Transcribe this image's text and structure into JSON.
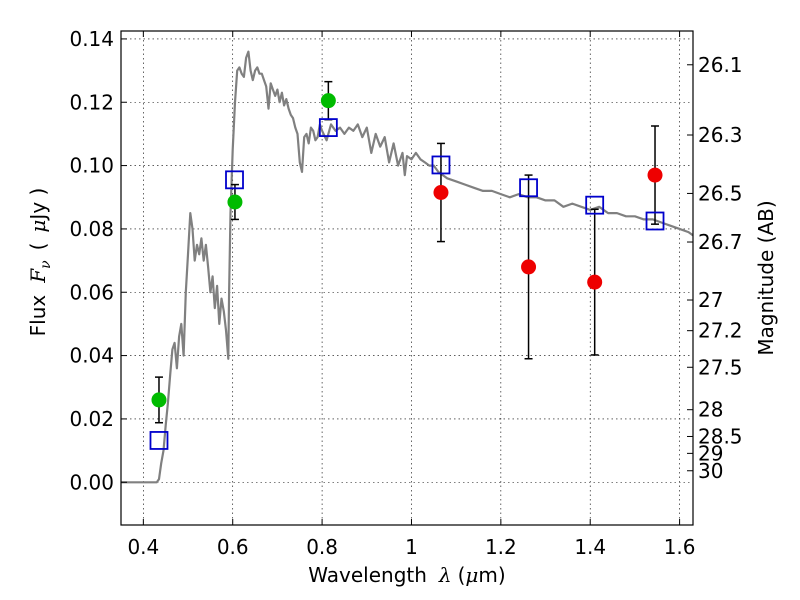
{
  "chart_data": {
    "type": "scatter",
    "xlabel": "Wavelength",
    "xlabel_symbol": "λ",
    "xlabel_unit_pre": "(",
    "xlabel_unit_mu": "μ",
    "xlabel_unit_post": "m)",
    "ylabel": "Flux",
    "ylabel_symbol": "F",
    "ylabel_sub": "ν",
    "ylabel_unit_pre": "(",
    "ylabel_unit_mu": "μ",
    "ylabel_unit_post": "Jy )",
    "y2label": "Magnitude (AB)",
    "xlim": [
      0.35,
      1.63
    ],
    "ylim": [
      -0.0135,
      0.1425
    ],
    "grid": true,
    "x_ticks": [
      {
        "value": 0.4,
        "label": "0.4"
      },
      {
        "value": 0.6,
        "label": "0.6"
      },
      {
        "value": 0.8,
        "label": "0.8"
      },
      {
        "value": 1.0,
        "label": "1"
      },
      {
        "value": 1.2,
        "label": "1.2"
      },
      {
        "value": 1.4,
        "label": "1.4"
      },
      {
        "value": 1.6,
        "label": "1.6"
      }
    ],
    "y_ticks": [
      {
        "value": 0.0,
        "label": "0.00"
      },
      {
        "value": 0.02,
        "label": "0.02"
      },
      {
        "value": 0.04,
        "label": "0.04"
      },
      {
        "value": 0.06,
        "label": "0.06"
      },
      {
        "value": 0.08,
        "label": "0.08"
      },
      {
        "value": 0.1,
        "label": "0.10"
      },
      {
        "value": 0.12,
        "label": "0.12"
      },
      {
        "value": 0.14,
        "label": "0.14"
      }
    ],
    "y2_ticks": [
      {
        "mag": 26.1,
        "label": "26.1"
      },
      {
        "mag": 26.3,
        "label": "26.3"
      },
      {
        "mag": 26.5,
        "label": "26.5"
      },
      {
        "mag": 26.7,
        "label": "26.7"
      },
      {
        "mag": 27,
        "label": "27"
      },
      {
        "mag": 27.2,
        "label": "27.2"
      },
      {
        "mag": 27.5,
        "label": "27.5"
      },
      {
        "mag": 28,
        "label": "28"
      },
      {
        "mag": 28.5,
        "label": "28.5"
      },
      {
        "mag": 29,
        "label": "29"
      },
      {
        "mag": 30,
        "label": "30"
      }
    ],
    "series": [
      {
        "color": "#808080",
        "type": "line",
        "points": [
          [
            0.35,
            0.0
          ],
          [
            0.43,
            0.0
          ],
          [
            0.435,
            0.001
          ],
          [
            0.44,
            0.006
          ],
          [
            0.445,
            0.01
          ],
          [
            0.45,
            0.018
          ],
          [
            0.455,
            0.025
          ],
          [
            0.46,
            0.034
          ],
          [
            0.465,
            0.042
          ],
          [
            0.47,
            0.044
          ],
          [
            0.475,
            0.036
          ],
          [
            0.48,
            0.046
          ],
          [
            0.485,
            0.05
          ],
          [
            0.49,
            0.04
          ],
          [
            0.495,
            0.06
          ],
          [
            0.5,
            0.072
          ],
          [
            0.505,
            0.085
          ],
          [
            0.51,
            0.08
          ],
          [
            0.515,
            0.07
          ],
          [
            0.52,
            0.075
          ],
          [
            0.525,
            0.072
          ],
          [
            0.53,
            0.077
          ],
          [
            0.535,
            0.07
          ],
          [
            0.54,
            0.075
          ],
          [
            0.545,
            0.068
          ],
          [
            0.55,
            0.06
          ],
          [
            0.555,
            0.065
          ],
          [
            0.56,
            0.055
          ],
          [
            0.565,
            0.062
          ],
          [
            0.57,
            0.05
          ],
          [
            0.575,
            0.058
          ],
          [
            0.58,
            0.054
          ],
          [
            0.585,
            0.048
          ],
          [
            0.59,
            0.039
          ],
          [
            0.592,
            0.06
          ],
          [
            0.595,
            0.085
          ],
          [
            0.6,
            0.105
          ],
          [
            0.605,
            0.12
          ],
          [
            0.61,
            0.13
          ],
          [
            0.615,
            0.131
          ],
          [
            0.62,
            0.129
          ],
          [
            0.625,
            0.128
          ],
          [
            0.63,
            0.134
          ],
          [
            0.635,
            0.136
          ],
          [
            0.64,
            0.13
          ],
          [
            0.645,
            0.127
          ],
          [
            0.65,
            0.13
          ],
          [
            0.655,
            0.131
          ],
          [
            0.66,
            0.129
          ],
          [
            0.665,
            0.129
          ],
          [
            0.67,
            0.127
          ],
          [
            0.675,
            0.125
          ],
          [
            0.68,
            0.118
          ],
          [
            0.685,
            0.126
          ],
          [
            0.69,
            0.124
          ],
          [
            0.695,
            0.122
          ],
          [
            0.7,
            0.124
          ],
          [
            0.705,
            0.12
          ],
          [
            0.71,
            0.123
          ],
          [
            0.715,
            0.119
          ],
          [
            0.72,
            0.121
          ],
          [
            0.725,
            0.118
          ],
          [
            0.73,
            0.116
          ],
          [
            0.735,
            0.115
          ],
          [
            0.74,
            0.112
          ],
          [
            0.745,
            0.11
          ],
          [
            0.75,
            0.101
          ],
          [
            0.755,
            0.098
          ],
          [
            0.76,
            0.109
          ],
          [
            0.765,
            0.11
          ],
          [
            0.77,
            0.107
          ],
          [
            0.775,
            0.112
          ],
          [
            0.78,
            0.111
          ],
          [
            0.785,
            0.108
          ],
          [
            0.79,
            0.109
          ],
          [
            0.795,
            0.113
          ],
          [
            0.8,
            0.111
          ],
          [
            0.81,
            0.108
          ],
          [
            0.82,
            0.113
          ],
          [
            0.83,
            0.111
          ],
          [
            0.84,
            0.112
          ],
          [
            0.85,
            0.11
          ],
          [
            0.86,
            0.112
          ],
          [
            0.87,
            0.111
          ],
          [
            0.88,
            0.113
          ],
          [
            0.89,
            0.109
          ],
          [
            0.9,
            0.112
          ],
          [
            0.91,
            0.104
          ],
          [
            0.92,
            0.11
          ],
          [
            0.93,
            0.106
          ],
          [
            0.94,
            0.109
          ],
          [
            0.95,
            0.101
          ],
          [
            0.96,
            0.107
          ],
          [
            0.97,
            0.1
          ],
          [
            0.98,
            0.104
          ],
          [
            0.985,
            0.097
          ],
          [
            0.99,
            0.103
          ],
          [
            1.0,
            0.102
          ],
          [
            1.01,
            0.104
          ],
          [
            1.02,
            0.102
          ],
          [
            1.03,
            0.101
          ],
          [
            1.04,
            0.1
          ],
          [
            1.05,
            0.1
          ],
          [
            1.06,
            0.098
          ],
          [
            1.07,
            0.097
          ],
          [
            1.08,
            0.096
          ],
          [
            1.1,
            0.095
          ],
          [
            1.12,
            0.094
          ],
          [
            1.14,
            0.093
          ],
          [
            1.16,
            0.092
          ],
          [
            1.18,
            0.092
          ],
          [
            1.2,
            0.091
          ],
          [
            1.22,
            0.09
          ],
          [
            1.24,
            0.091
          ],
          [
            1.26,
            0.09
          ],
          [
            1.28,
            0.09
          ],
          [
            1.3,
            0.089
          ],
          [
            1.32,
            0.089
          ],
          [
            1.34,
            0.087
          ],
          [
            1.36,
            0.088
          ],
          [
            1.38,
            0.087
          ],
          [
            1.4,
            0.086
          ],
          [
            1.42,
            0.087
          ],
          [
            1.44,
            0.085
          ],
          [
            1.46,
            0.085
          ],
          [
            1.48,
            0.084
          ],
          [
            1.5,
            0.084
          ],
          [
            1.52,
            0.083
          ],
          [
            1.54,
            0.083
          ],
          [
            1.56,
            0.082
          ],
          [
            1.58,
            0.081
          ],
          [
            1.6,
            0.08
          ],
          [
            1.62,
            0.079
          ],
          [
            1.63,
            0.078
          ]
        ]
      },
      {
        "color": "#00bb00",
        "type": "scatter",
        "points": [
          {
            "x": 0.435,
            "y": 0.026,
            "err": 0.0072
          },
          {
            "x": 0.605,
            "y": 0.0885,
            "err": 0.0055
          },
          {
            "x": 0.814,
            "y": 0.1205,
            "err": 0.006
          }
        ]
      },
      {
        "color": "#ee0000",
        "type": "scatter",
        "points": [
          {
            "x": 1.066,
            "y": 0.0915,
            "err": 0.0155
          },
          {
            "x": 1.262,
            "y": 0.068,
            "err": 0.029
          },
          {
            "x": 1.41,
            "y": 0.0632,
            "err": 0.023
          },
          {
            "x": 1.545,
            "y": 0.097,
            "err": 0.0155
          }
        ]
      },
      {
        "color": "#0000cc",
        "type": "scatter",
        "points": [
          {
            "x": 0.435,
            "y": 0.0132
          },
          {
            "x": 0.604,
            "y": 0.0955
          },
          {
            "x": 0.814,
            "y": 0.112
          },
          {
            "x": 1.066,
            "y": 0.1002
          },
          {
            "x": 1.262,
            "y": 0.093
          },
          {
            "x": 1.41,
            "y": 0.0875
          },
          {
            "x": 1.545,
            "y": 0.0825
          }
        ]
      }
    ]
  }
}
